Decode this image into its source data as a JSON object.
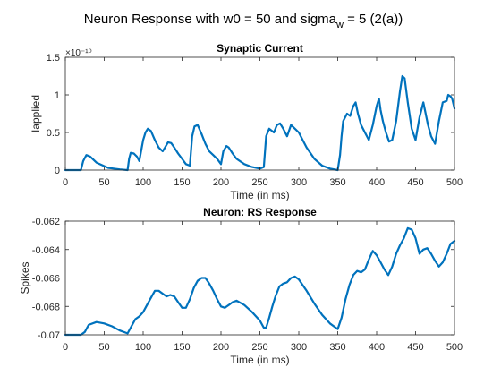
{
  "figure": {
    "title_main": "Neuron Response with w0 = 50 and sigma",
    "title_sub": "w",
    "title_tail": " = 5 (2(a))"
  },
  "chart_data": [
    {
      "type": "line",
      "title": "Synaptic Current",
      "xlabel": "Time (in ms)",
      "ylabel": "Iapplied",
      "exponent_label": "×10⁻¹⁰",
      "xlim": [
        0,
        500
      ],
      "ylim": [
        0,
        1.5
      ],
      "xticks": [
        0,
        50,
        100,
        150,
        200,
        250,
        300,
        350,
        400,
        450,
        500
      ],
      "yticks": [
        0,
        0.5,
        1,
        1.5
      ],
      "ytick_labels": [
        "0",
        "0.5",
        "1",
        "1.5"
      ],
      "color": "#0072BD",
      "series": [
        {
          "x": [
            0,
            20,
            23,
            27,
            32,
            40,
            55,
            70,
            80,
            82,
            84,
            88,
            92,
            95,
            100,
            103,
            106,
            110,
            115,
            120,
            125,
            128,
            132,
            136,
            140,
            145,
            150,
            155,
            160,
            163,
            166,
            170,
            175,
            180,
            185,
            190,
            195,
            200,
            203,
            207,
            210,
            215,
            220,
            230,
            240,
            250,
            255,
            258,
            262,
            268,
            272,
            276,
            280,
            285,
            290,
            300,
            310,
            320,
            330,
            340,
            350,
            353,
            355,
            357,
            362,
            366,
            370,
            373,
            376,
            380,
            385,
            390,
            395,
            400,
            403,
            405,
            408,
            412,
            416,
            420,
            425,
            430,
            433,
            436,
            440,
            445,
            450,
            455,
            460,
            463,
            466,
            470,
            475,
            480,
            485,
            490,
            492,
            495,
            497,
            500
          ],
          "y": [
            0,
            0,
            0.12,
            0.2,
            0.18,
            0.1,
            0.03,
            0.01,
            0,
            0.15,
            0.23,
            0.22,
            0.18,
            0.12,
            0.4,
            0.5,
            0.55,
            0.52,
            0.4,
            0.3,
            0.25,
            0.3,
            0.37,
            0.36,
            0.3,
            0.22,
            0.15,
            0.08,
            0.06,
            0.45,
            0.58,
            0.6,
            0.48,
            0.35,
            0.25,
            0.2,
            0.15,
            0.08,
            0.25,
            0.32,
            0.3,
            0.22,
            0.15,
            0.08,
            0.04,
            0.02,
            0.04,
            0.45,
            0.55,
            0.5,
            0.6,
            0.62,
            0.55,
            0.45,
            0.6,
            0.5,
            0.3,
            0.15,
            0.06,
            0.02,
            0,
            0.2,
            0.45,
            0.65,
            0.75,
            0.72,
            0.85,
            0.9,
            0.75,
            0.6,
            0.5,
            0.4,
            0.6,
            0.85,
            0.95,
            0.8,
            0.65,
            0.5,
            0.38,
            0.4,
            0.65,
            1.05,
            1.25,
            1.22,
            0.9,
            0.55,
            0.4,
            0.7,
            0.9,
            0.75,
            0.6,
            0.45,
            0.35,
            0.65,
            0.9,
            0.92,
            1.0,
            0.98,
            0.95,
            0.82
          ]
        }
      ]
    },
    {
      "type": "line",
      "title": "Neuron: RS Response",
      "xlabel": "Time (in ms)",
      "ylabel": "Spikes",
      "xlim": [
        0,
        500
      ],
      "ylim": [
        -0.07,
        -0.062
      ],
      "xticks": [
        0,
        50,
        100,
        150,
        200,
        250,
        300,
        350,
        400,
        450,
        500
      ],
      "yticks": [
        -0.07,
        -0.068,
        -0.066,
        -0.064,
        -0.062
      ],
      "ytick_labels": [
        "-0.07",
        "-0.068",
        "-0.066",
        "-0.064",
        "-0.062"
      ],
      "color": "#0072BD",
      "series": [
        {
          "x": [
            0,
            20,
            25,
            30,
            40,
            50,
            60,
            70,
            80,
            85,
            90,
            95,
            100,
            105,
            110,
            115,
            120,
            125,
            130,
            135,
            140,
            145,
            150,
            155,
            160,
            165,
            170,
            175,
            180,
            185,
            190,
            195,
            200,
            205,
            210,
            215,
            220,
            230,
            240,
            250,
            255,
            258,
            262,
            266,
            270,
            275,
            280,
            285,
            290,
            295,
            300,
            310,
            320,
            330,
            340,
            350,
            355,
            360,
            365,
            370,
            375,
            380,
            385,
            390,
            395,
            400,
            405,
            410,
            415,
            420,
            425,
            430,
            435,
            440,
            445,
            450,
            455,
            460,
            465,
            470,
            475,
            480,
            485,
            490,
            495,
            500
          ],
          "y": [
            -0.07,
            -0.07,
            -0.0698,
            -0.0693,
            -0.0691,
            -0.0692,
            -0.0694,
            -0.0697,
            -0.0699,
            -0.0694,
            -0.0689,
            -0.0687,
            -0.0684,
            -0.0679,
            -0.0674,
            -0.0669,
            -0.0669,
            -0.0671,
            -0.0673,
            -0.0672,
            -0.0673,
            -0.0677,
            -0.0681,
            -0.0681,
            -0.0675,
            -0.0667,
            -0.0662,
            -0.066,
            -0.066,
            -0.0664,
            -0.0669,
            -0.0675,
            -0.068,
            -0.0681,
            -0.0679,
            -0.0677,
            -0.0676,
            -0.0679,
            -0.0684,
            -0.069,
            -0.0695,
            -0.0695,
            -0.0688,
            -0.068,
            -0.0673,
            -0.0666,
            -0.0664,
            -0.0663,
            -0.066,
            -0.0659,
            -0.0661,
            -0.0669,
            -0.0678,
            -0.0686,
            -0.0692,
            -0.0696,
            -0.0688,
            -0.0675,
            -0.0665,
            -0.0658,
            -0.0655,
            -0.0656,
            -0.0654,
            -0.0647,
            -0.0641,
            -0.0644,
            -0.0649,
            -0.0654,
            -0.0658,
            -0.0652,
            -0.0643,
            -0.0637,
            -0.0632,
            -0.0625,
            -0.0626,
            -0.0632,
            -0.0643,
            -0.064,
            -0.0639,
            -0.0643,
            -0.0648,
            -0.0652,
            -0.0649,
            -0.0643,
            -0.0636,
            -0.0634
          ]
        }
      ]
    }
  ]
}
